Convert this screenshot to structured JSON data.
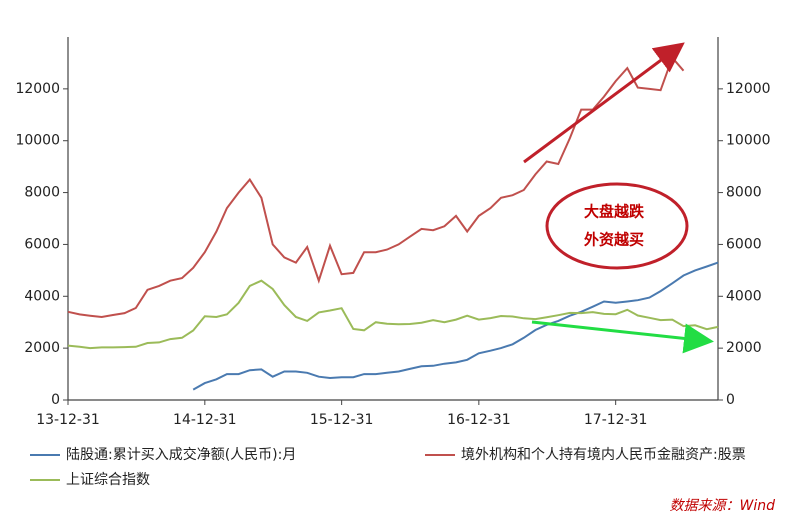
{
  "chart_data": {
    "type": "line",
    "annotations": [
      "大盘越跌",
      "外资越买"
    ],
    "source": "数据来源：Wind",
    "x": [
      "2013-12",
      "2014-01",
      "2014-02",
      "2014-03",
      "2014-04",
      "2014-05",
      "2014-06",
      "2014-07",
      "2014-08",
      "2014-09",
      "2014-10",
      "2014-11",
      "2014-12",
      "2015-01",
      "2015-02",
      "2015-03",
      "2015-04",
      "2015-05",
      "2015-06",
      "2015-07",
      "2015-08",
      "2015-09",
      "2015-10",
      "2015-11",
      "2015-12",
      "2016-01",
      "2016-02",
      "2016-03",
      "2016-04",
      "2016-05",
      "2016-06",
      "2016-07",
      "2016-08",
      "2016-09",
      "2016-10",
      "2016-11",
      "2016-12",
      "2017-01",
      "2017-02",
      "2017-03",
      "2017-04",
      "2017-05",
      "2017-06",
      "2017-07",
      "2017-08",
      "2017-09",
      "2017-10",
      "2017-11",
      "2017-12",
      "2018-01",
      "2018-02",
      "2018-03",
      "2018-04",
      "2018-05",
      "2018-06",
      "2018-07",
      "2018-08",
      "2018-09"
    ],
    "xlim": [
      "2013-12-31",
      "2018-09-30"
    ],
    "xticks": [
      {
        "value": "2013-12-31",
        "label": "13-12-31"
      },
      {
        "value": "2014-12-31",
        "label": "14-12-31"
      },
      {
        "value": "2015-12-31",
        "label": "15-12-31"
      },
      {
        "value": "2016-12-31",
        "label": "16-12-31"
      },
      {
        "value": "2017-12-31",
        "label": "17-12-31"
      }
    ],
    "ylim": [
      0,
      14000
    ],
    "yticks": [
      0,
      2000,
      4000,
      6000,
      8000,
      10000,
      12000
    ],
    "y2lim": [
      0,
      14000
    ],
    "y2ticks": [
      0,
      2000,
      4000,
      6000,
      8000,
      10000,
      12000
    ],
    "series": [
      {
        "name": "陆股通:累计买入成交净额(人民币):月",
        "color": "#4a7ab0",
        "values": [
          null,
          null,
          null,
          null,
          null,
          null,
          null,
          null,
          null,
          null,
          null,
          400,
          650,
          800,
          1000,
          1000,
          1150,
          1180,
          900,
          1100,
          1100,
          1050,
          900,
          850,
          880,
          880,
          1000,
          1000,
          1050,
          1100,
          1200,
          1300,
          1320,
          1400,
          1450,
          1550,
          1800,
          1900,
          2000,
          2150,
          2400,
          2700,
          2900,
          3050,
          3250,
          3400,
          3600,
          3800,
          3750,
          3800,
          3850,
          3950,
          4200,
          4500,
          4800,
          5000,
          5150,
          5300
        ]
      },
      {
        "name": "境外机构和个人持有境内人民币金融资产:股票",
        "color": "#c0504d",
        "values": [
          3400,
          3300,
          3250,
          3200,
          3280,
          3350,
          3550,
          4250,
          4400,
          4600,
          4700,
          5100,
          5700,
          6500,
          7400,
          8000,
          8500,
          7800,
          6000,
          5500,
          5300,
          5900,
          4600,
          5950,
          4850,
          4900,
          5700,
          5700,
          5800,
          6000,
          6300,
          6600,
          6550,
          6700,
          7100,
          6500,
          7100,
          7400,
          7800,
          7900,
          8100,
          8700,
          9200,
          9100,
          10100,
          11200,
          11200,
          11700,
          12300,
          12800,
          12050,
          12000,
          11950,
          13200,
          12700,
          null,
          null,
          null
        ]
      },
      {
        "name": "上证综合指数",
        "color": "#9bbb59",
        "values": [
          2100,
          2050,
          2000,
          2030,
          2030,
          2040,
          2050,
          2200,
          2220,
          2350,
          2400,
          2680,
          3230,
          3200,
          3300,
          3750,
          4400,
          4600,
          4280,
          3660,
          3200,
          3050,
          3380,
          3450,
          3540,
          2740,
          2690,
          3000,
          2940,
          2920,
          2930,
          2980,
          3080,
          3000,
          3100,
          3250,
          3100,
          3160,
          3240,
          3220,
          3150,
          3120,
          3190,
          3270,
          3360,
          3350,
          3390,
          3320,
          3310,
          3480,
          3260,
          3170,
          3080,
          3100,
          2850,
          2880,
          2730,
          2820
        ]
      }
    ]
  }
}
